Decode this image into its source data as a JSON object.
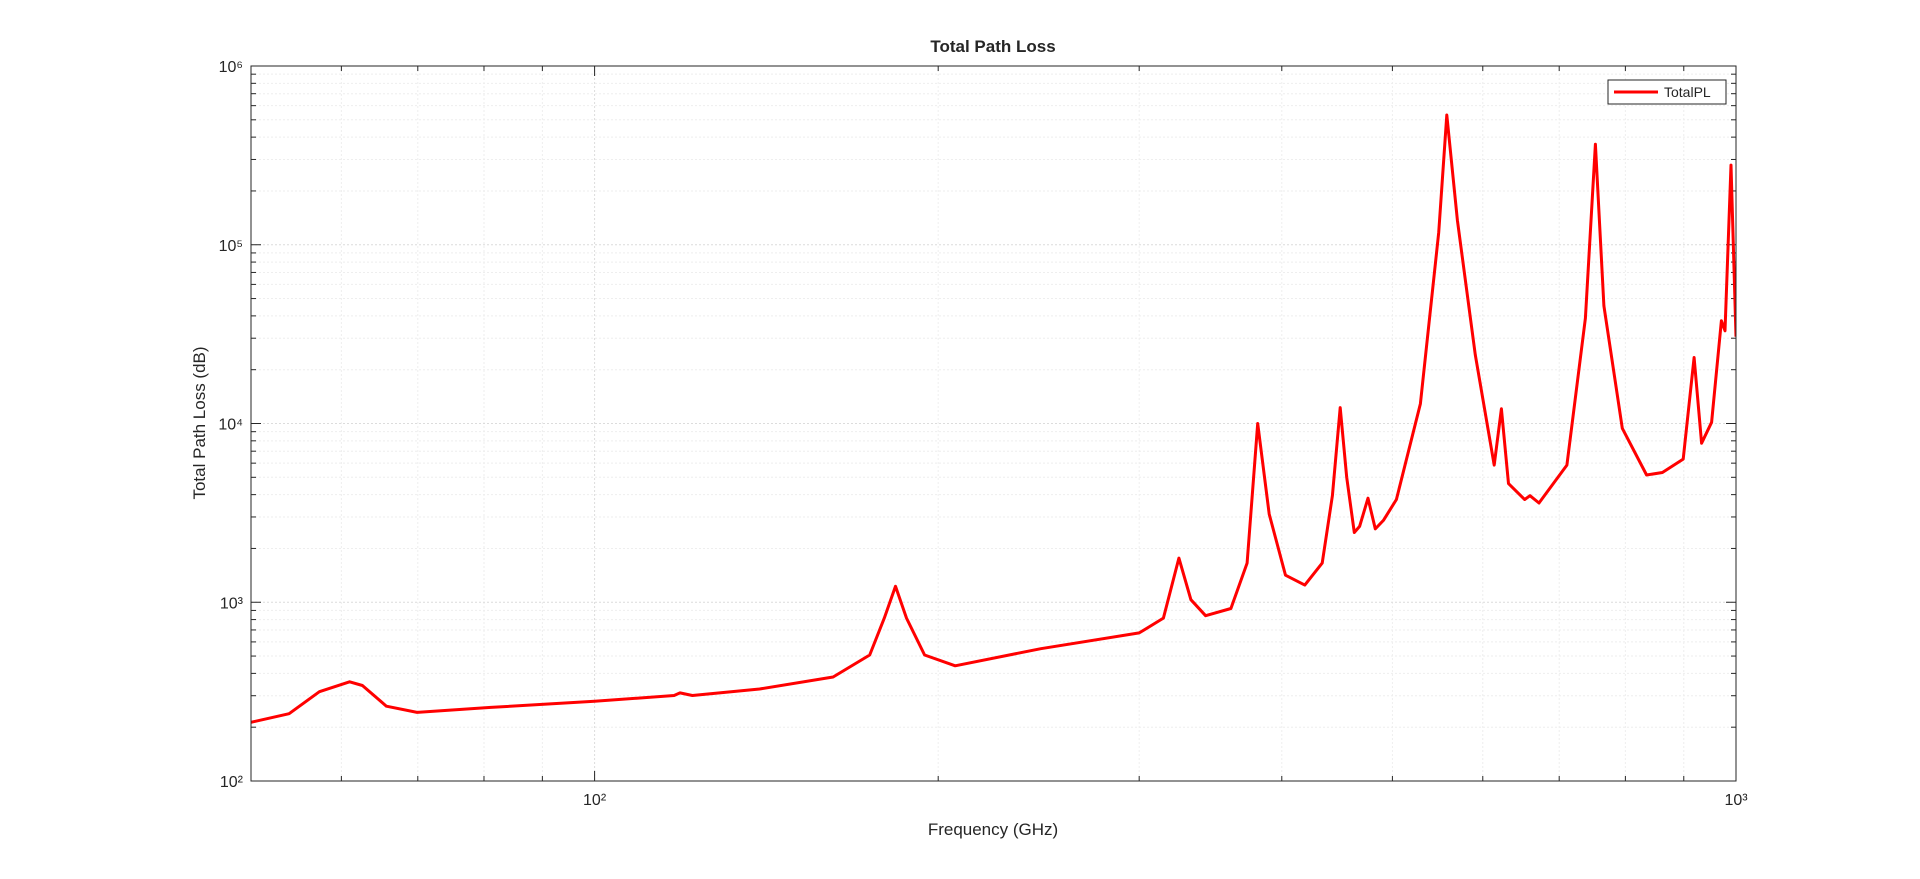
{
  "chart_data": {
    "type": "line",
    "title": "Total Path Loss",
    "x_label": "Frequency (GHz)",
    "y_label": "Total Path Loss (dB)",
    "x_scale": "log",
    "y_scale": "log",
    "grid": true,
    "minor_grid": true,
    "legend_position": "upper right",
    "xlim": [
      50,
      1000
    ],
    "ylim": [
      100,
      1000000
    ],
    "xticks": [
      {
        "value": 100,
        "label": "10²"
      },
      {
        "value": 1000,
        "label": "10³"
      }
    ],
    "yticks": [
      {
        "value": 100,
        "label": "10²"
      },
      {
        "value": 1000,
        "label": "10³"
      },
      {
        "value": 10000,
        "label": "10⁴"
      },
      {
        "value": 100000,
        "label": "10⁵"
      },
      {
        "value": 1000000,
        "label": "10⁶"
      }
    ],
    "x": [
      50,
      54,
      57.4,
      61,
      62.6,
      65.7,
      69.9,
      81.1,
      100,
      117.4,
      118.8,
      121.8,
      139.5,
      161.8,
      174.2,
      179.4,
      183.5,
      187.6,
      194.6,
      207,
      246,
      300,
      315,
      325,
      333,
      343,
      361,
      373,
      381,
      390,
      403,
      419,
      434,
      443,
      450,
      456,
      463,
      468,
      476,
      483,
      491,
      504,
      529,
      549,
      558,
      570,
      591,
      614,
      623,
      632,
      653,
      660,
      672,
      711,
      738,
      753,
      766,
      795,
      835,
      862,
      899,
      919,
      933,
      952,
      971,
      978,
      990,
      1000
    ],
    "series": [
      {
        "name": "TotalPL",
        "color": "#ff0000",
        "values": [
          213,
          238,
          316,
          359,
          342,
          262,
          242,
          258,
          279,
          301,
          311,
          301,
          327,
          382,
          507,
          815,
          1228,
          815,
          507,
          441,
          550,
          674,
          815,
          1766,
          1033,
          841,
          923,
          1656,
          10000,
          3111,
          1416,
          1248,
          1656,
          3944,
          12280,
          5000,
          2455,
          2655,
          3820,
          2574,
          2870,
          3758,
          12900,
          117000,
          532000,
          137000,
          24200,
          5850,
          12080,
          4613,
          3758,
          3944,
          3590,
          5850,
          38800,
          365000,
          45500,
          9400,
          5150,
          5320,
          6320,
          23400,
          7760,
          10160,
          37600,
          33000,
          279000,
          30600
        ]
      }
    ]
  }
}
